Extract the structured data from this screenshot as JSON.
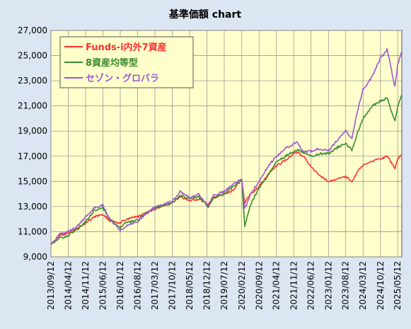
{
  "chart_data": {
    "type": "line",
    "title": "基準価額 chart",
    "xlabel": "",
    "ylabel": "",
    "ylim": [
      9000,
      27000
    ],
    "yticks": [
      "9,000",
      "11,000",
      "13,000",
      "15,000",
      "17,000",
      "19,000",
      "21,000",
      "23,000",
      "25,000",
      "27,000"
    ],
    "ytick_values": [
      9000,
      11000,
      13000,
      15000,
      17000,
      19000,
      21000,
      23000,
      25000,
      27000
    ],
    "xticks": [
      "2013/09/12",
      "2014/04/12",
      "2014/11/12",
      "2015/06/12",
      "2016/01/12",
      "2016/08/12",
      "2017/03/12",
      "2017/10/12",
      "2018/05/12",
      "2018/12/12",
      "2019/07/12",
      "2020/02/12",
      "2020/09/12",
      "2021/04/12",
      "2021/11/12",
      "2022/06/12",
      "2023/01/12",
      "2023/08/12",
      "2024/03/12",
      "2024/10/12",
      "2025/05/12"
    ],
    "x_range": [
      "2013/09/12",
      "2025/07/01"
    ],
    "grid": true,
    "legend_position": "top-left",
    "plot_background": "#ffffcc",
    "series": [
      {
        "name": "Funds-i内外7資産",
        "color": "#ff3030",
        "x": [
          "2013/09/12",
          "2014/01/01",
          "2014/04/12",
          "2014/08/01",
          "2014/11/12",
          "2015/03/01",
          "2015/06/12",
          "2015/09/01",
          "2016/01/12",
          "2016/04/01",
          "2016/08/12",
          "2016/12/01",
          "2017/03/12",
          "2017/07/01",
          "2017/10/12",
          "2018/01/15",
          "2018/05/12",
          "2018/09/01",
          "2018/12/25",
          "2019/03/01",
          "2019/07/12",
          "2019/11/01",
          "2020/02/12",
          "2020/03/20",
          "2020/06/01",
          "2020/09/12",
          "2021/01/01",
          "2021/04/12",
          "2021/08/01",
          "2021/11/12",
          "2022/01/01",
          "2022/03/08",
          "2022/06/12",
          "2022/10/01",
          "2023/01/12",
          "2023/05/01",
          "2023/08/12",
          "2023/10/27",
          "2024/01/01",
          "2024/03/12",
          "2024/07/01",
          "2024/10/12",
          "2025/01/01",
          "2025/04/08",
          "2025/05/12",
          "2025/07/01"
        ],
        "values": [
          10000,
          10700,
          10900,
          11300,
          11700,
          12200,
          12400,
          11900,
          11700,
          12000,
          12200,
          12500,
          12800,
          13100,
          13300,
          13800,
          13500,
          13600,
          13200,
          13700,
          14000,
          14300,
          15200,
          13300,
          14000,
          14600,
          15600,
          16200,
          16700,
          17200,
          17300,
          17000,
          16200,
          15400,
          15000,
          15200,
          15400,
          15000,
          15700,
          16300,
          16600,
          16800,
          17000,
          16000,
          16800,
          17100
        ]
      },
      {
        "name": "8資産均等型",
        "color": "#3c8a2e",
        "x": [
          "2013/09/12",
          "2014/01/01",
          "2014/04/12",
          "2014/08/01",
          "2014/11/12",
          "2015/03/01",
          "2015/06/12",
          "2015/09/01",
          "2016/01/12",
          "2016/04/01",
          "2016/08/12",
          "2016/12/01",
          "2017/03/12",
          "2017/07/01",
          "2017/10/12",
          "2018/01/15",
          "2018/05/12",
          "2018/09/01",
          "2018/12/25",
          "2019/03/01",
          "2019/07/12",
          "2019/11/01",
          "2020/02/12",
          "2020/03/20",
          "2020/06/01",
          "2020/09/12",
          "2021/01/01",
          "2021/04/12",
          "2021/08/01",
          "2021/11/12",
          "2022/01/01",
          "2022/03/08",
          "2022/06/12",
          "2022/10/01",
          "2023/01/12",
          "2023/05/01",
          "2023/08/12",
          "2023/10/27",
          "2024/01/01",
          "2024/03/12",
          "2024/07/01",
          "2024/10/12",
          "2025/01/01",
          "2025/04/08",
          "2025/05/12",
          "2025/07/01"
        ],
        "values": [
          10000,
          10500,
          10700,
          11200,
          11800,
          12700,
          12900,
          12000,
          11300,
          11800,
          11900,
          12500,
          12900,
          13100,
          13300,
          13900,
          13600,
          13800,
          13000,
          13700,
          14000,
          14600,
          15100,
          11500,
          13200,
          14500,
          15500,
          16500,
          17000,
          17400,
          17500,
          17300,
          17000,
          17200,
          17200,
          17700,
          18000,
          17500,
          18800,
          20000,
          21000,
          21400,
          21600,
          19800,
          21000,
          21900
        ]
      },
      {
        "name": "セゾン・グロバラ",
        "color": "#9b59d0",
        "x": [
          "2013/09/12",
          "2014/01/01",
          "2014/04/12",
          "2014/08/01",
          "2014/11/12",
          "2015/03/01",
          "2015/06/12",
          "2015/09/01",
          "2016/01/12",
          "2016/04/01",
          "2016/08/12",
          "2016/12/01",
          "2017/03/12",
          "2017/07/01",
          "2017/10/12",
          "2018/01/15",
          "2018/05/12",
          "2018/09/01",
          "2018/12/25",
          "2019/03/01",
          "2019/07/12",
          "2019/11/01",
          "2020/02/12",
          "2020/03/20",
          "2020/06/01",
          "2020/09/12",
          "2021/01/01",
          "2021/04/12",
          "2021/08/01",
          "2021/11/12",
          "2022/01/01",
          "2022/03/08",
          "2022/06/12",
          "2022/10/01",
          "2023/01/12",
          "2023/05/01",
          "2023/08/12",
          "2023/10/27",
          "2024/01/01",
          "2024/03/12",
          "2024/07/01",
          "2024/10/12",
          "2025/01/01",
          "2025/04/08",
          "2025/05/12",
          "2025/07/01"
        ],
        "values": [
          10000,
          10800,
          11000,
          11400,
          12200,
          12900,
          13100,
          12000,
          11100,
          11500,
          11800,
          12500,
          12900,
          13200,
          13400,
          14200,
          13700,
          14000,
          13000,
          13900,
          14200,
          14800,
          15200,
          12800,
          14000,
          15000,
          16200,
          17000,
          17600,
          18000,
          18100,
          17300,
          17400,
          17600,
          17400,
          18300,
          19000,
          18400,
          20500,
          22300,
          23300,
          24800,
          25500,
          22500,
          24300,
          25300
        ]
      }
    ]
  }
}
